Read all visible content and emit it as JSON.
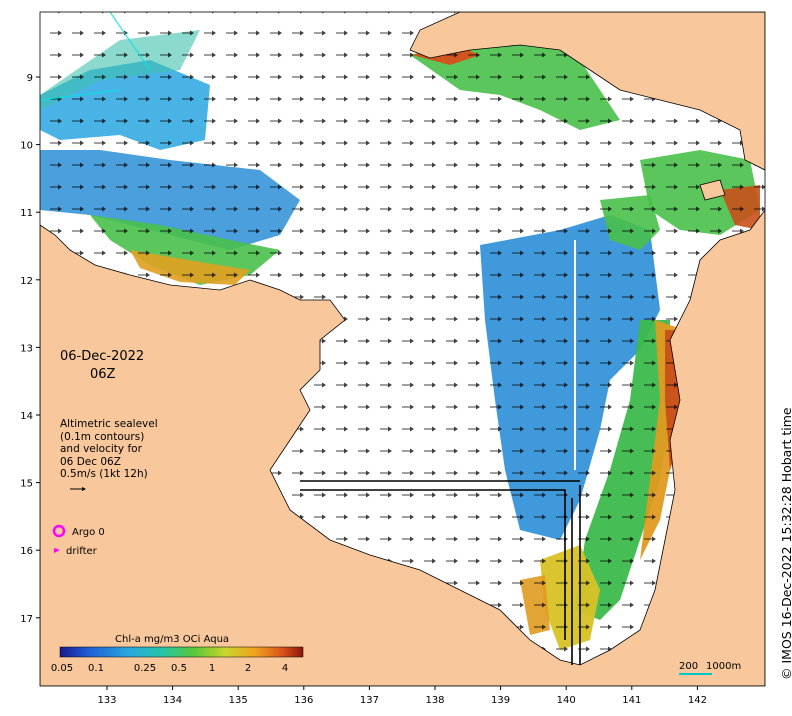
{
  "map": {
    "date": "06-Dec-2022",
    "time": "06Z",
    "altimetry_lines": [
      "Altimetric sealevel",
      "(0.1m contours)",
      "and velocity for",
      "06 Dec 06Z",
      "0.5m/s (1kt 12h)"
    ],
    "legend": {
      "argo": "Argo 0",
      "drifter": "drifter"
    },
    "colorbar": {
      "title": "Chl-a mg/m3 OCi Aqua",
      "ticks": [
        "0.05",
        "0.1",
        "0.25",
        "0.5",
        "1",
        "2",
        "4"
      ]
    },
    "scale_bar": {
      "label1": "200",
      "label2": "1000m"
    },
    "credit": "© IMOS 16-Dec-2022 15:32:28 Hobart time",
    "x_ticks": [
      "133",
      "134",
      "135",
      "136",
      "137",
      "138",
      "139",
      "140",
      "141",
      "142"
    ],
    "y_ticks": [
      "9",
      "10",
      "11",
      "12",
      "13",
      "14",
      "15",
      "16",
      "17"
    ],
    "colors": {
      "land": "#f8c89c",
      "ocean": "#ffffff",
      "argo": "#ff00ff",
      "track": "#00e5e5"
    }
  }
}
